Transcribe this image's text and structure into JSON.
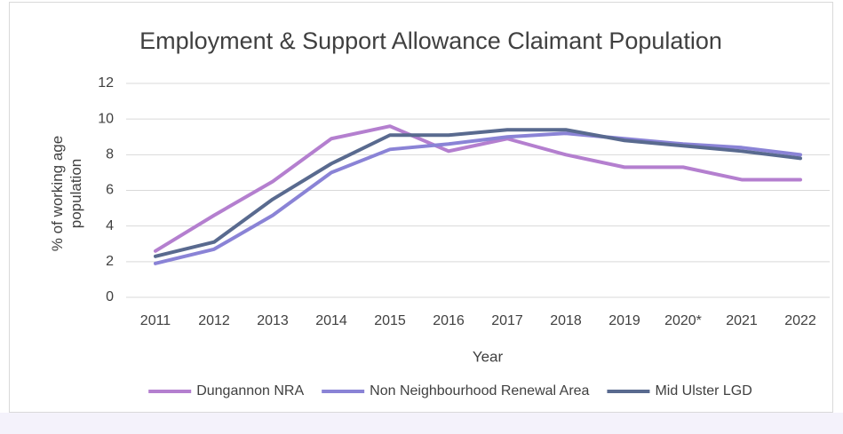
{
  "chart_data": {
    "type": "line",
    "title": "Employment & Support Allowance Claimant Population",
    "xlabel": "Year",
    "ylabel": "% of working age population",
    "categories": [
      "2011",
      "2012",
      "2013",
      "2014",
      "2015",
      "2016",
      "2017",
      "2018",
      "2019",
      "2020*",
      "2021",
      "2022"
    ],
    "series": [
      {
        "name": "Dungannon NRA",
        "color": "#b47fcf",
        "values": [
          2.6,
          4.6,
          6.5,
          8.9,
          9.6,
          8.2,
          8.9,
          8.0,
          7.3,
          7.3,
          6.6,
          6.6
        ]
      },
      {
        "name": "Non Neighbourhood Renewal Area",
        "color": "#8a83d6",
        "values": [
          1.9,
          2.7,
          4.6,
          7.0,
          8.3,
          8.6,
          9.0,
          9.2,
          8.9,
          8.6,
          8.4,
          8.0
        ]
      },
      {
        "name": "Mid Ulster LGD",
        "color": "#596a8f",
        "values": [
          2.3,
          3.1,
          5.5,
          7.5,
          9.1,
          9.1,
          9.4,
          9.4,
          8.8,
          8.5,
          8.2,
          7.8
        ]
      }
    ],
    "ylim": [
      0,
      12
    ],
    "yticks": [
      0,
      2,
      4,
      6,
      8,
      10,
      12
    ],
    "grid": true,
    "legend": "bottom"
  }
}
